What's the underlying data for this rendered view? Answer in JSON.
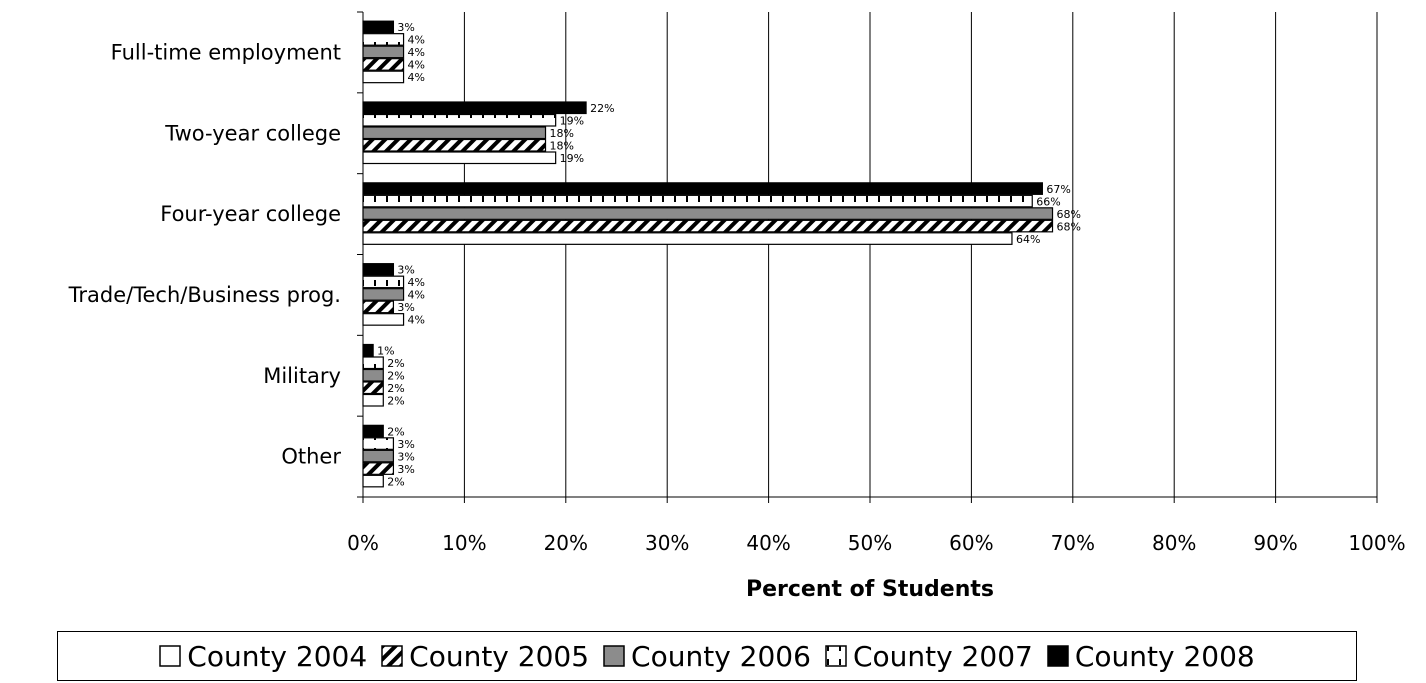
{
  "chart_data": {
    "type": "bar",
    "orientation": "horizontal",
    "title": "",
    "xlabel": "Percent of Students",
    "ylabel": "",
    "xlim": [
      0,
      100
    ],
    "x_ticks": [
      "0%",
      "10%",
      "20%",
      "30%",
      "40%",
      "50%",
      "60%",
      "70%",
      "80%",
      "90%",
      "100%"
    ],
    "grid": true,
    "legend_position": "bottom",
    "categories": [
      "Full-time employment",
      "Two-year college",
      "Four-year college",
      "Trade/Tech/Business prog.",
      "Military",
      "Other"
    ],
    "series": [
      {
        "name": "County 2004",
        "pattern": "white",
        "values": [
          4,
          19,
          64,
          4,
          2,
          2
        ],
        "labels": [
          "4%",
          "19%",
          "64%",
          "4%",
          "2%",
          "2%"
        ]
      },
      {
        "name": "County 2005",
        "pattern": "diagonal-hatch",
        "values": [
          4,
          18,
          68,
          3,
          2,
          3
        ],
        "labels": [
          "4%",
          "18%",
          "68%",
          "3%",
          "2%",
          "3%"
        ]
      },
      {
        "name": "County 2006",
        "pattern": "gray",
        "values": [
          4,
          18,
          68,
          4,
          2,
          3
        ],
        "labels": [
          "4%",
          "18%",
          "68%",
          "4%",
          "2%",
          "3%"
        ]
      },
      {
        "name": "County 2007",
        "pattern": "vertical-dash",
        "values": [
          4,
          19,
          66,
          4,
          2,
          3
        ],
        "labels": [
          "4%",
          "19%",
          "66%",
          "4%",
          "2%",
          "3%"
        ]
      },
      {
        "name": "County 2008",
        "pattern": "black",
        "values": [
          3,
          22,
          67,
          3,
          1,
          2
        ],
        "labels": [
          "3%",
          "22%",
          "67%",
          "3%",
          "1%",
          "2%"
        ]
      }
    ],
    "colors": {
      "gray": "#8c8c8c",
      "black": "#000000",
      "white": "#ffffff",
      "grid": "#000000"
    }
  }
}
